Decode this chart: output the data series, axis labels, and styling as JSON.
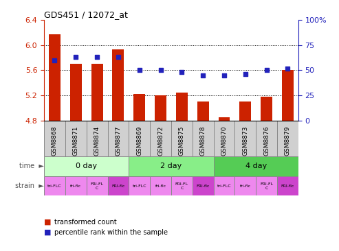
{
  "title": "GDS451 / 12072_at",
  "samples": [
    "GSM8868",
    "GSM8871",
    "GSM8874",
    "GSM8877",
    "GSM8869",
    "GSM8872",
    "GSM8875",
    "GSM8878",
    "GSM8870",
    "GSM8873",
    "GSM8876",
    "GSM8879"
  ],
  "transformed_count": [
    6.17,
    5.7,
    5.7,
    5.93,
    5.22,
    5.2,
    5.24,
    5.1,
    4.85,
    5.1,
    5.18,
    5.6
  ],
  "percentile_rank": [
    60,
    63,
    63,
    63,
    50,
    50,
    48,
    45,
    45,
    46,
    50,
    52
  ],
  "ylim_left": [
    4.8,
    6.4
  ],
  "ylim_right": [
    0,
    100
  ],
  "yticks_left": [
    4.8,
    5.2,
    5.6,
    6.0,
    6.4
  ],
  "yticks_right": [
    0,
    25,
    50,
    75,
    100
  ],
  "ytick_labels_left": [
    "4.8",
    "5.2",
    "5.6",
    "6.0",
    "6.4"
  ],
  "ytick_labels_right": [
    "0",
    "25",
    "50",
    "75",
    "100%"
  ],
  "bar_color": "#cc2200",
  "dot_color": "#2222bb",
  "bar_base": 4.8,
  "time_groups": [
    {
      "label": "0 day",
      "start": 0,
      "end": 4,
      "color": "#ccffcc"
    },
    {
      "label": "2 day",
      "start": 4,
      "end": 8,
      "color": "#88ee88"
    },
    {
      "label": "4 day",
      "start": 8,
      "end": 12,
      "color": "#55cc55"
    }
  ],
  "strain_labels": [
    "tri-FLC",
    "fri-flc",
    "FRI-FL\nC",
    "FRI-flc",
    "tri-FLC",
    "fri-flc",
    "FRI-FL\nC",
    "FRI-flc",
    "tri-FLC",
    "fri-flc",
    "FRI-FL\nC",
    "FRI-flc"
  ],
  "strain_colors": [
    "#ee88ee",
    "#ee88ee",
    "#ee88ee",
    "#cc44cc",
    "#ee88ee",
    "#ee88ee",
    "#ee88ee",
    "#cc44cc",
    "#ee88ee",
    "#ee88ee",
    "#ee88ee",
    "#cc44cc"
  ],
  "dotted_lines": [
    6.0,
    5.6,
    5.2
  ],
  "left_axis_color": "#cc2200",
  "right_axis_color": "#2222bb",
  "sample_box_color": "#d0d0d0",
  "col_sep_color": "#888888",
  "legend_items": [
    {
      "color": "#cc2200",
      "label": "transformed count"
    },
    {
      "color": "#2222bb",
      "label": "percentile rank within the sample"
    }
  ]
}
